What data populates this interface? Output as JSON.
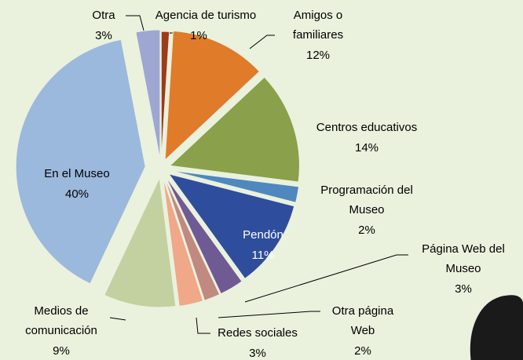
{
  "chart_data": {
    "type": "pie",
    "categories": [
      "Agencia de turismo",
      "Amigos o familiares",
      "Centros educativos",
      "Programación del Museo",
      "Pendón",
      "Página Web del Museo",
      "Otra página Web",
      "Redes sociales",
      "Medios de comunicación",
      "En el Museo",
      "Otra"
    ],
    "values": [
      1,
      12,
      14,
      2,
      11,
      3,
      2,
      3,
      9,
      40,
      3
    ],
    "value_labels": [
      "1%",
      "12%",
      "14%",
      "2%",
      "11%",
      "3%",
      "2%",
      "3%",
      "9%",
      "40%",
      "3%"
    ],
    "colors": [
      "#9c3a1a",
      "#e07b2a",
      "#8aa04a",
      "#4f88bf",
      "#2e4d9c",
      "#6f5a94",
      "#c08a80",
      "#f0a888",
      "#c3d0a0",
      "#9bb9dc",
      "#9ea6d2"
    ]
  }
}
